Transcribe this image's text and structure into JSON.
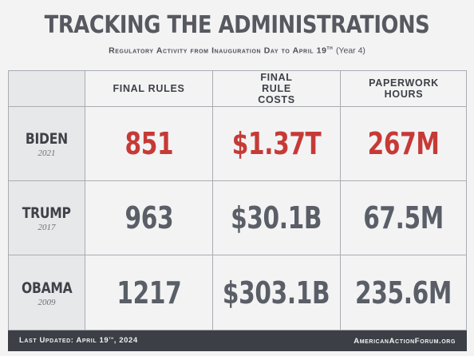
{
  "header": {
    "title": "TRACKING THE ADMINISTRATIONS",
    "subtitle_main": "Regulatory Activity from Inauguration Day to April 19",
    "subtitle_sup": "th",
    "subtitle_tail": "(Year 4)"
  },
  "table": {
    "columns": [
      "FINAL RULES",
      "FINAL RULE COSTS",
      "PAPERWORK HOURS"
    ],
    "rows": [
      {
        "name": "BIDEN",
        "year": "2021",
        "values": [
          "851",
          "$1.37T",
          "267M"
        ]
      },
      {
        "name": "TRUMP",
        "year": "2017",
        "values": [
          "963",
          "$30.1B",
          "67.5M"
        ]
      },
      {
        "name": "OBAMA",
        "year": "2009",
        "values": [
          "1217",
          "$303.1B",
          "235.6M"
        ]
      }
    ]
  },
  "footer": {
    "updated_main": "Last Updated: April 19",
    "updated_sup": "th",
    "updated_tail": ", 2024",
    "source": "AmericanActionForum.org"
  },
  "colors": {
    "highlight": "#c63a36",
    "value": "#5a5e66",
    "footer_bg": "#3c3f45"
  }
}
